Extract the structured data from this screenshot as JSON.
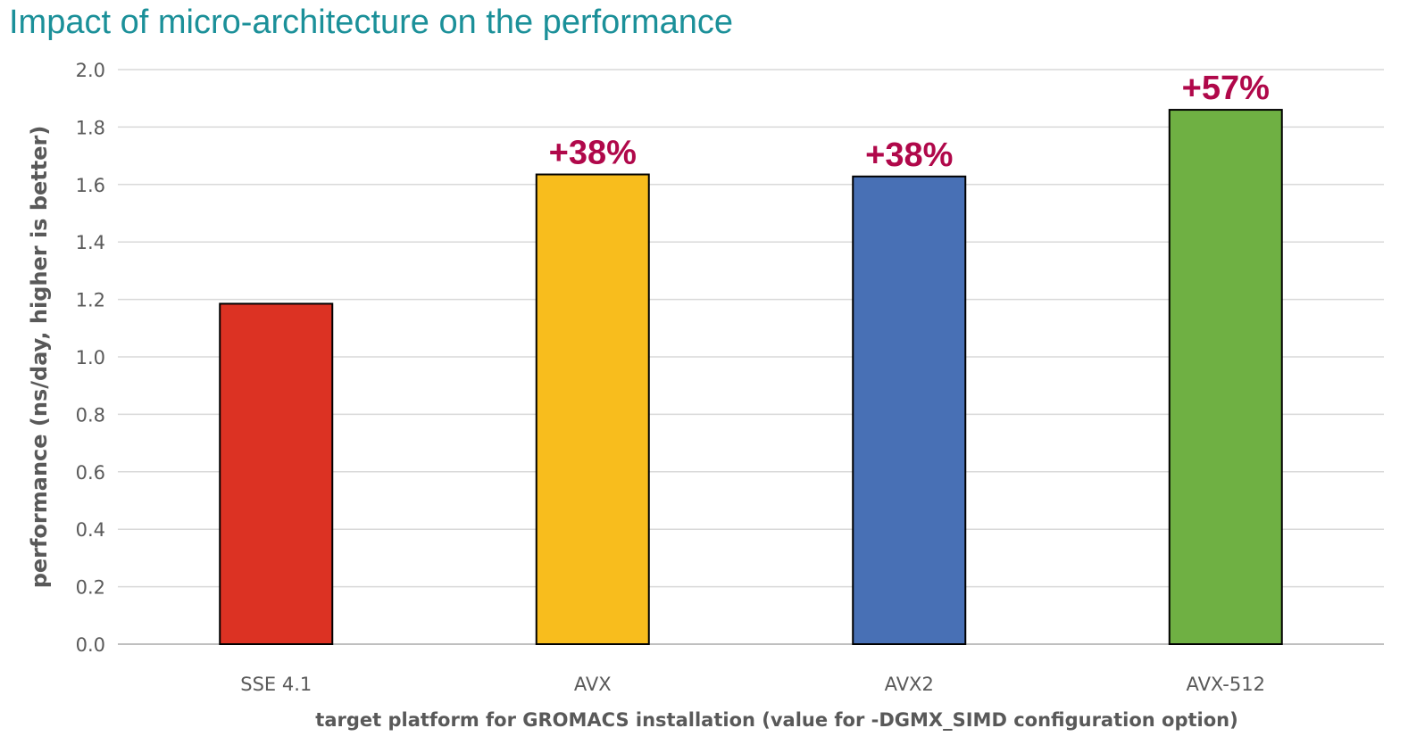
{
  "title": "Impact of micro-architecture on the performance",
  "colors": {
    "title": "#1b9099",
    "grid": "#d9d9d9",
    "axis": "#bfbfbf",
    "label_accent": "#b0084a",
    "tick_text": "#595959"
  },
  "chart_data": {
    "type": "bar",
    "categories": [
      "SSE 4.1",
      "AVX",
      "AVX2",
      "AVX-512"
    ],
    "values": [
      1.185,
      1.635,
      1.628,
      1.86
    ],
    "bar_colors": [
      "#dc3223",
      "#f8bd1d",
      "#4870b5",
      "#6fb043"
    ],
    "data_labels": [
      "",
      "+38%",
      "+38%",
      "+57%"
    ],
    "xlabel": "target platform for GROMACS installation (value for -DGMX_SIMD configuration option)",
    "ylabel": "performance (ns/day, higher is better)",
    "ylim": [
      0,
      2.0
    ],
    "yticks": [
      "0.0",
      "0.2",
      "0.4",
      "0.6",
      "0.8",
      "1.0",
      "1.2",
      "1.4",
      "1.6",
      "1.8",
      "2.0"
    ],
    "grid": true,
    "legend": "none"
  }
}
